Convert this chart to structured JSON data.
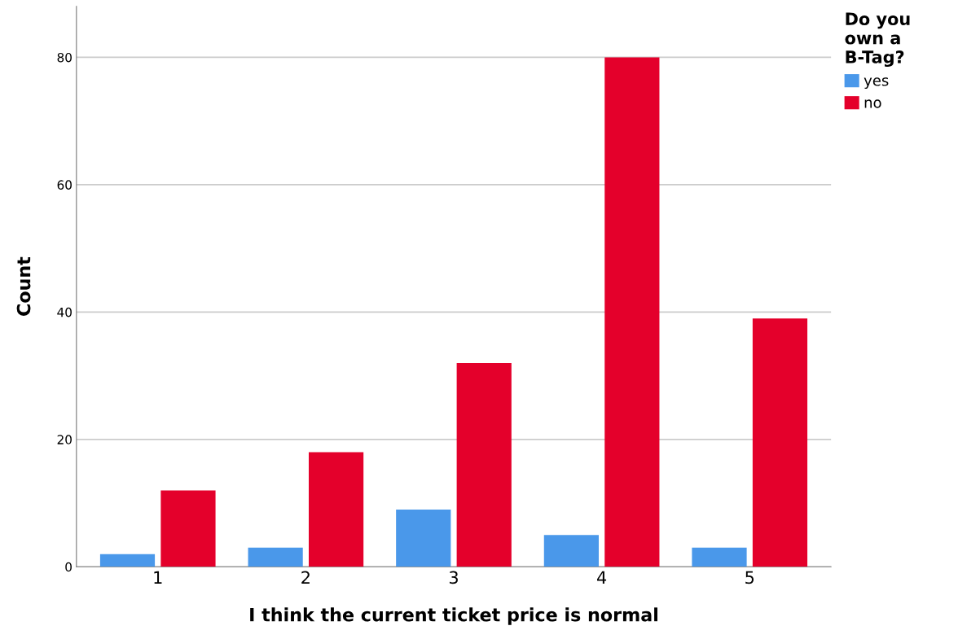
{
  "chart_data": {
    "type": "bar",
    "xlabel": "I think the current ticket price is normal",
    "ylabel": "Count",
    "legend_title": "Do you\nown a\nB-Tag?",
    "categories": [
      "1",
      "2",
      "3",
      "4",
      "5"
    ],
    "series": [
      {
        "name": "yes",
        "color": "#4a98ea",
        "values": [
          2,
          3,
          9,
          5,
          3
        ]
      },
      {
        "name": "no",
        "color": "#e4002b",
        "values": [
          12,
          18,
          32,
          80,
          39
        ]
      }
    ],
    "ylim": [
      0,
      88
    ],
    "yticks": [
      0,
      20,
      40,
      60,
      80
    ],
    "grid": "y",
    "legend": "top right"
  }
}
